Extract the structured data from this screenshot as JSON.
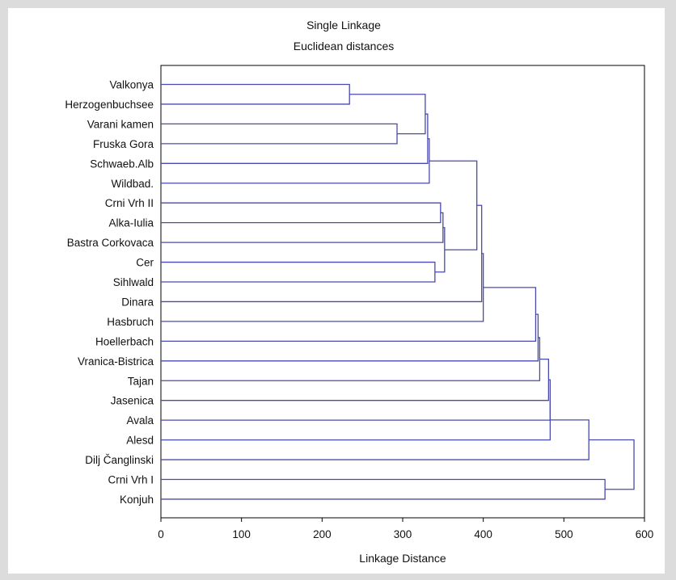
{
  "chart_data": {
    "type": "dendrogram",
    "title": "Single Linkage",
    "subtitle": "Euclidean distances",
    "xlabel": "Linkage Distance",
    "xlim": [
      0,
      600
    ],
    "xticks": [
      0,
      100,
      200,
      300,
      400,
      500,
      600
    ],
    "leaves": [
      "Valkonya",
      "Herzogenbuchsee",
      "Varani kamen",
      "Fruska Gora",
      "Schwaeb.Alb",
      "Wildbad.",
      "Crni Vrh II",
      "Alka-Iulia",
      "Bastra Corkovaca",
      "Cer",
      "Sihlwald",
      "Dinara",
      "Hasbruch",
      "Hoellerbach",
      "Vranica-Bistrica",
      "Tajan",
      "Jasenica",
      "Avala",
      "Alesd",
      "Dilj Čanglinski",
      "Crni Vrh I",
      "Konjuh"
    ],
    "merges": [
      {
        "id": "N1",
        "a": "Valkonya",
        "b": "Herzogenbuchsee",
        "height": 234
      },
      {
        "id": "N2",
        "a": "Varani kamen",
        "b": "Fruska Gora",
        "height": 293
      },
      {
        "id": "N3",
        "a": "N1",
        "b": "N2",
        "height": 328
      },
      {
        "id": "N4",
        "a": "N3",
        "b": "Schwaeb.Alb",
        "height": 331
      },
      {
        "id": "N5",
        "a": "N4",
        "b": "Wildbad.",
        "height": 333
      },
      {
        "id": "N6",
        "a": "Cer",
        "b": "Sihlwald",
        "height": 340
      },
      {
        "id": "N7",
        "a": "Crni Vrh II",
        "b": "Alka-Iulia",
        "height": 347
      },
      {
        "id": "N8",
        "a": "N7",
        "b": "Bastra Corkovaca",
        "height": 350
      },
      {
        "id": "N9",
        "a": "N8",
        "b": "N6",
        "height": 352
      },
      {
        "id": "N10",
        "a": "N5",
        "b": "N9",
        "height": 392
      },
      {
        "id": "N11",
        "a": "N10",
        "b": "Dinara",
        "height": 398
      },
      {
        "id": "N12",
        "a": "N11",
        "b": "Hasbruch",
        "height": 400
      },
      {
        "id": "N13",
        "a": "N12",
        "b": "Hoellerbach",
        "height": 465
      },
      {
        "id": "N14",
        "a": "N13",
        "b": "Vranica-Bistrica",
        "height": 468
      },
      {
        "id": "N15",
        "a": "N14",
        "b": "Tajan",
        "height": 470
      },
      {
        "id": "N16",
        "a": "N15",
        "b": "Jasenica",
        "height": 481
      },
      {
        "id": "N17",
        "a": "N16",
        "b": "Avala",
        "height": 483
      },
      {
        "id": "N18",
        "a": "N17",
        "b": "Alesd",
        "height": 483
      },
      {
        "id": "N19",
        "a": "N18",
        "b": "Dilj Čanglinski",
        "height": 531
      },
      {
        "id": "N20",
        "a": "Crni Vrh I",
        "b": "Konjuh",
        "height": 551
      },
      {
        "id": "N21",
        "a": "N19",
        "b": "N20",
        "height": 587
      }
    ],
    "line_color": "#4a4aad",
    "grid": false
  }
}
